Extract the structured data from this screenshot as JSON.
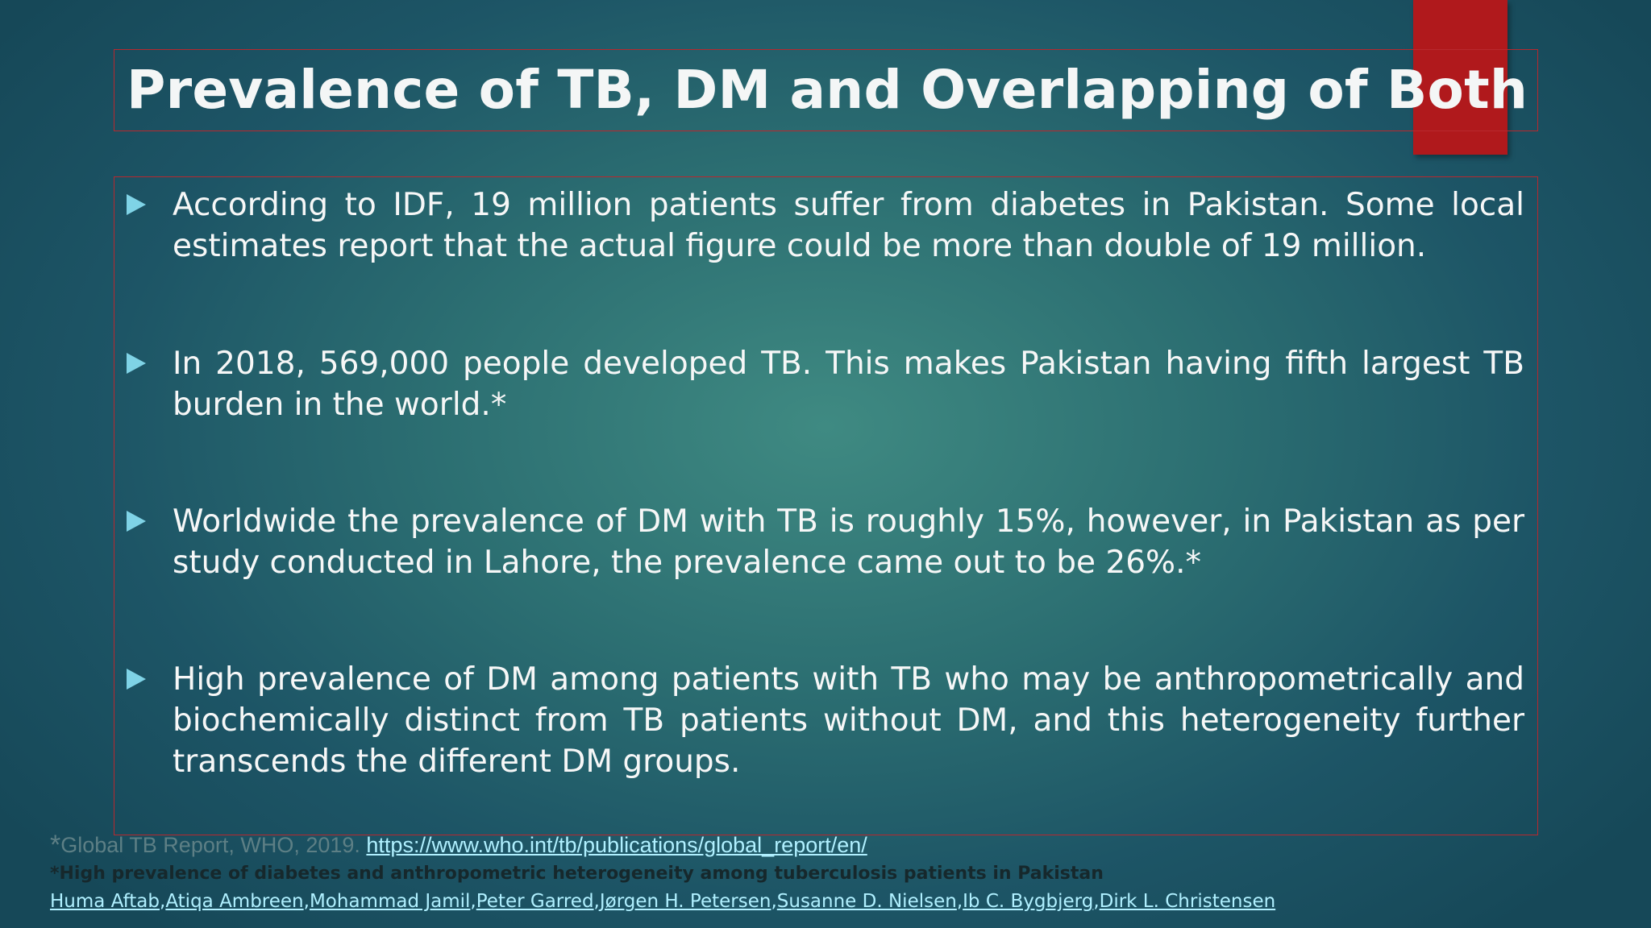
{
  "slide": {
    "title": "Prevalence of TB, DM and Overlapping of Both",
    "bullets": [
      "According to IDF, 19 million patients suffer from diabetes in Pakistan. Some local estimates report that the actual figure could be more than double of 19 million.",
      "In 2018, 569,000 people developed TB. This makes Pakistan having fifth largest TB burden in the world.*",
      "Worldwide the prevalence of DM with TB is roughly 15%, however, in Pakistan as per study conducted in Lahore, the prevalence came out to be 26%.*",
      "High prevalence of DM among patients with TB who may be anthropometrically and biochemically distinct from TB patients without DM, and this heterogeneity further transcends the different DM groups."
    ]
  },
  "footnotes": {
    "ref1_star": "*",
    "ref1_text": "Global TB Report, WHO, 2019. ",
    "ref1_link": "https://www.who.int/tb/publications/global_report/en/",
    "ref2_text": "*High prevalence of diabetes and anthropometric heterogeneity among tuberculosis patients in Pakistan",
    "authors": [
      "Huma Aftab",
      "Atiqa Ambreen",
      "Mohammad Jamil",
      "Peter Garred",
      "Jørgen H. Petersen",
      "Susanne D. Nielsen",
      "Ib C. Bygbjerg",
      "Dirk L. Christensen"
    ],
    "author_separator": ","
  },
  "colors": {
    "frame_border": "#b8282e",
    "red_tab": "#b0191c",
    "bullet_arrow": "#7fd3e6",
    "link": "#b0f0ff"
  }
}
